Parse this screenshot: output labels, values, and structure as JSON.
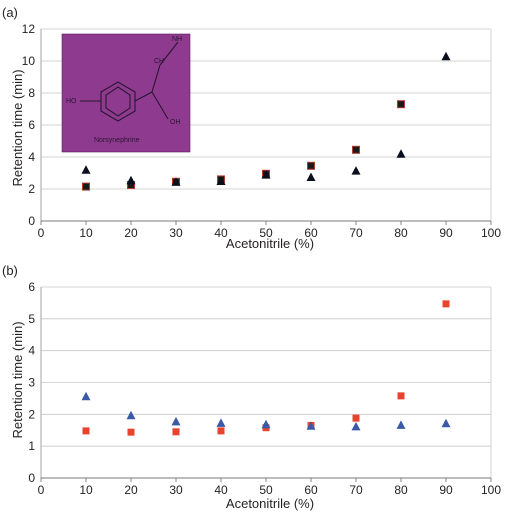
{
  "chart_data": [
    {
      "panel_label": "(a)",
      "type": "scatter",
      "xlabel": "Acetonitrile (%)",
      "ylabel": "Retention time (min)",
      "xlim": [
        0,
        100
      ],
      "ylim": [
        0,
        12
      ],
      "xticks": [
        0,
        10,
        20,
        30,
        40,
        50,
        60,
        70,
        80,
        90,
        100
      ],
      "yticks": [
        0,
        2,
        4,
        6,
        8,
        10,
        12
      ],
      "grid": "horizontal",
      "legend": "none",
      "inset": {
        "description": "chemical structure",
        "background_color": "#8e3b8f",
        "labels": {
          "ring_sub": "HO",
          "top_chain": "NH",
          "chain_mid": "CH",
          "side": "OH",
          "compound": "Norsynephrine"
        }
      },
      "series": [
        {
          "marker": "square",
          "color": "#1a1a1a",
          "edge_color": "#b23a2e",
          "x": [
            10,
            20,
            30,
            40,
            50,
            60,
            70,
            80
          ],
          "y": [
            2.15,
            2.25,
            2.45,
            2.6,
            2.95,
            3.45,
            4.45,
            7.3
          ]
        },
        {
          "marker": "triangle",
          "color": "#0a0f1e",
          "x": [
            10,
            20,
            30,
            40,
            50,
            60,
            70,
            80,
            90
          ],
          "y": [
            3.2,
            2.55,
            2.45,
            2.5,
            2.9,
            2.75,
            3.15,
            4.2,
            10.3
          ]
        }
      ]
    },
    {
      "panel_label": "(b)",
      "type": "scatter",
      "xlabel": "Acetonitrile (%)",
      "ylabel": "Retention time (min)",
      "xlim": [
        0,
        100
      ],
      "ylim": [
        0,
        6
      ],
      "xticks": [
        0,
        10,
        20,
        30,
        40,
        50,
        60,
        70,
        80,
        90,
        100
      ],
      "yticks": [
        0,
        1,
        2,
        3,
        4,
        5,
        6
      ],
      "grid": "horizontal",
      "legend": "none",
      "series": [
        {
          "marker": "square",
          "color": "#e8432f",
          "x": [
            10,
            20,
            30,
            40,
            50,
            60,
            70,
            80,
            90
          ],
          "y": [
            1.48,
            1.44,
            1.45,
            1.48,
            1.58,
            1.65,
            1.88,
            2.58,
            5.47
          ]
        },
        {
          "marker": "triangle",
          "color": "#3a5aa8",
          "x": [
            10,
            20,
            30,
            40,
            50,
            60,
            70,
            80,
            90
          ],
          "y": [
            2.57,
            1.97,
            1.78,
            1.73,
            1.69,
            1.64,
            1.62,
            1.67,
            1.72
          ]
        }
      ]
    }
  ]
}
